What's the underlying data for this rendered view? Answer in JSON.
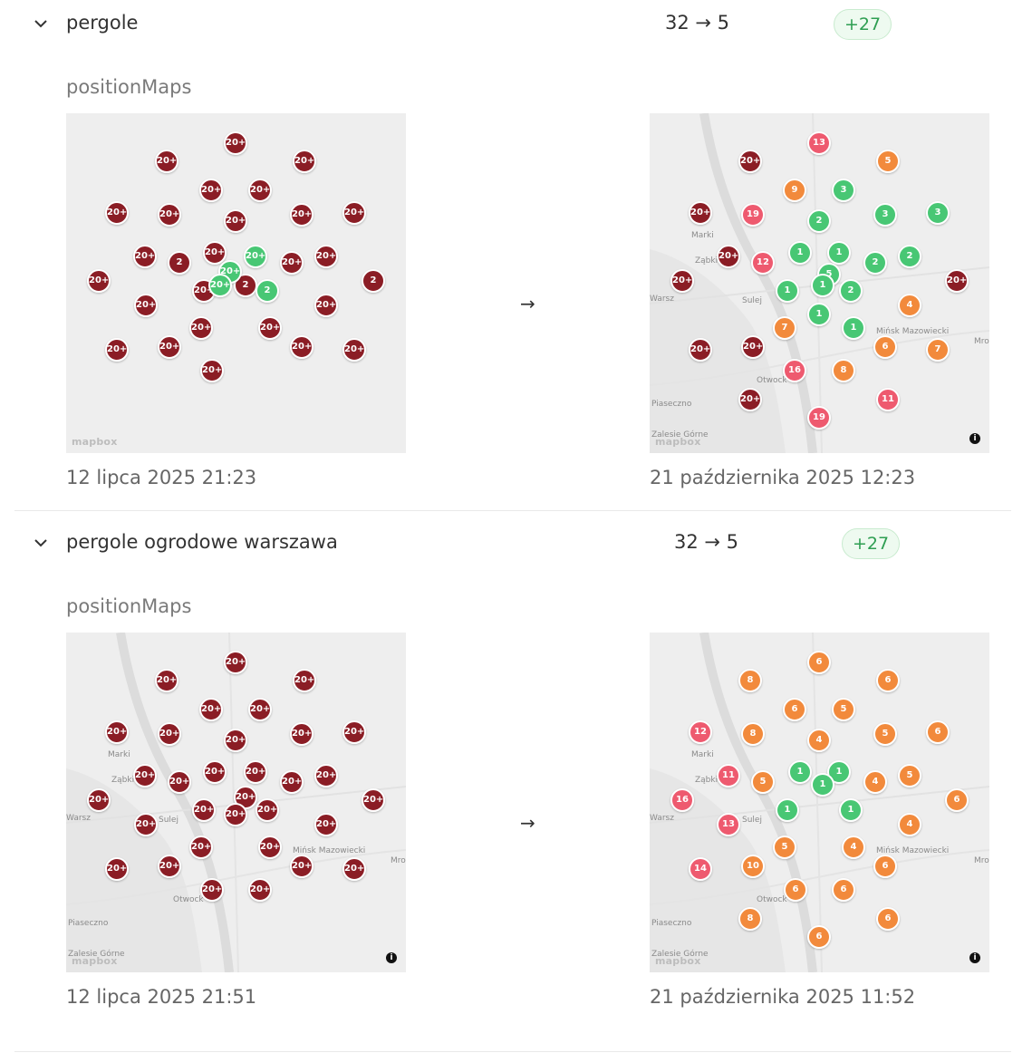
{
  "rows": [
    {
      "keyword": "pergole",
      "ranks": "32 → 5",
      "change": "+27",
      "section_label": "positionMaps",
      "arrow": "→",
      "map_before_date": "12 lipca 2025 21:23",
      "map_after_date": "21 października 2025 12:23",
      "map_before_markers": [
        "20+",
        "20+",
        "20+",
        "20+",
        "20+",
        "20+",
        "20+",
        "20+",
        "20+",
        "20+",
        "20+",
        "20+",
        "20+",
        "2",
        "20+",
        "20+",
        "20+",
        "20+",
        "2",
        "2",
        "2",
        "20+",
        "20+",
        "20+",
        "20+",
        "20+",
        "20+",
        "20+",
        "20+",
        "20+",
        "20+",
        "20+"
      ],
      "map_after_markers": [
        "13",
        "20+",
        "5",
        "9",
        "3",
        "20+",
        "19",
        "2",
        "3",
        "3",
        "20+",
        "12",
        "1",
        "1",
        "2",
        "2",
        "20+",
        "1",
        "5",
        "20+",
        "2",
        "1",
        "4",
        "7",
        "1",
        "1",
        "20+",
        "20+",
        "16",
        "8",
        "7",
        "6",
        "20+",
        "11",
        "19"
      ],
      "map_labels_after": [
        "Marki",
        "Ząbki",
        "Warsz",
        "Sulej",
        "Mińsk Mazowiecki",
        "Otwock",
        "Piaseczno",
        "Zalesie Górne",
        "Mro"
      ]
    },
    {
      "keyword": "pergole ogrodowe warszawa",
      "ranks": "32 → 5",
      "change": "+27",
      "section_label": "positionMaps",
      "arrow": "→",
      "map_before_date": "12 lipca 2025 21:51",
      "map_after_date": "21 października 2025 11:52",
      "map_before_markers": [
        "20+",
        "20+",
        "20+",
        "20+",
        "20+",
        "20+",
        "20+",
        "20+",
        "20+",
        "20+",
        "20+",
        "20+",
        "20+",
        "20+",
        "20+",
        "20+",
        "20+",
        "20+",
        "20+",
        "20+",
        "20+",
        "20+",
        "20+",
        "20+",
        "20+",
        "20+",
        "20+",
        "20+",
        "20+",
        "20+",
        "20+",
        "20+"
      ],
      "map_after_markers": [
        "6",
        "8",
        "6",
        "6",
        "5",
        "12",
        "8",
        "4",
        "5",
        "6",
        "11",
        "5",
        "1",
        "1",
        "4",
        "5",
        "16",
        "1",
        "1",
        "1",
        "6",
        "13",
        "4",
        "5",
        "4",
        "14",
        "10",
        "6",
        "6",
        "6",
        "8",
        "6",
        "6"
      ],
      "map_labels": [
        "Marki",
        "Ząbki",
        "Warsz",
        "Sulej",
        "Mińsk Mazowiecki",
        "Otwock",
        "Piaseczno",
        "Zalesie Górne",
        "Mro"
      ]
    }
  ],
  "brand": "mapbox",
  "info_icon": "i"
}
